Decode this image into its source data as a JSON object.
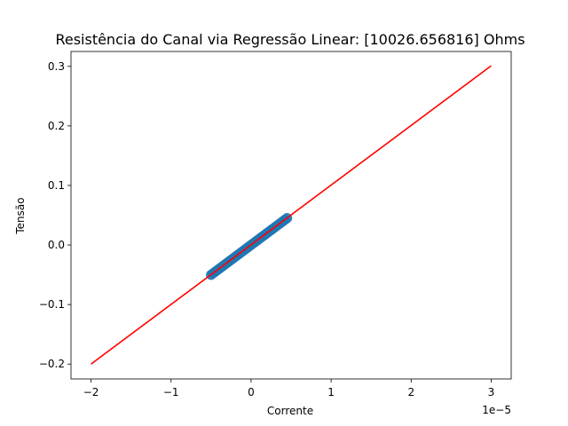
{
  "chart_data": {
    "type": "scatter",
    "title": "Resistência do Canal via Regressão Linear: [10026.656816] Ohms",
    "xlabel": "Corrente",
    "ylabel": "Tensão",
    "x_offset_text": "1e−5",
    "xlim": [
      -2.25,
      3.25
    ],
    "ylim": [
      -0.225,
      0.325
    ],
    "x_scale_factor": 1e-05,
    "xticks": [
      {
        "value": -2,
        "label": "−2"
      },
      {
        "value": -1,
        "label": "−1"
      },
      {
        "value": 0,
        "label": "0"
      },
      {
        "value": 1,
        "label": "1"
      },
      {
        "value": 2,
        "label": "2"
      },
      {
        "value": 3,
        "label": "3"
      }
    ],
    "yticks": [
      {
        "value": -0.2,
        "label": "−0.2"
      },
      {
        "value": -0.1,
        "label": "−0.1"
      },
      {
        "value": 0.0,
        "label": "0.0"
      },
      {
        "value": 0.1,
        "label": "0.1"
      },
      {
        "value": 0.2,
        "label": "0.2"
      },
      {
        "value": 0.3,
        "label": "0.3"
      }
    ],
    "grid": false,
    "series": [
      {
        "kind": "scatter",
        "color": "#1f77b4",
        "x_range": [
          -0.5,
          0.45
        ],
        "slope_per_unit": 0.1002665,
        "num_points": 40
      },
      {
        "kind": "line",
        "color": "#ff0000",
        "x": [
          -2,
          3
        ],
        "y": [
          -0.2,
          0.301
        ]
      }
    ]
  }
}
